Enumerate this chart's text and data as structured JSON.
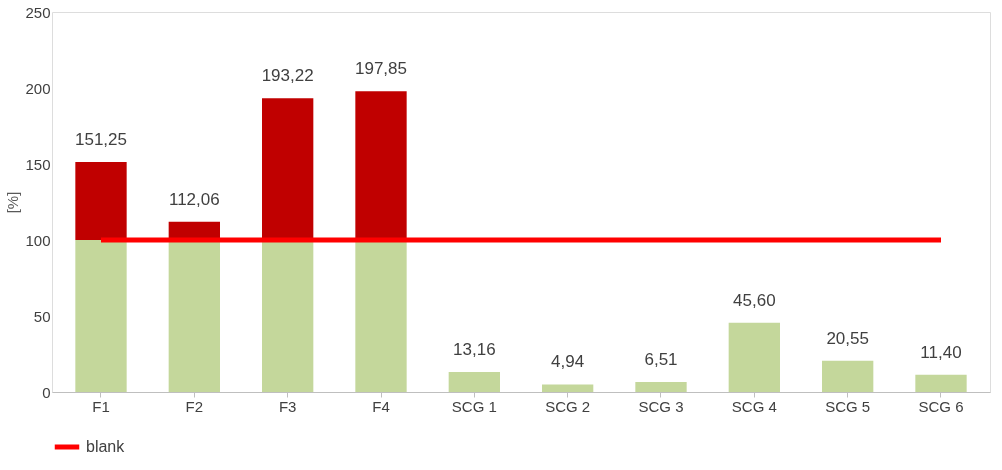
{
  "chart_data": {
    "type": "bar",
    "stacked": true,
    "ylabel": "[%]",
    "categories": [
      "F1",
      "F2",
      "F3",
      "F4",
      "SCG 1",
      "SCG 2",
      "SCG 3",
      "SCG 4",
      "SCG 5",
      "SCG 6"
    ],
    "series": [
      {
        "color": "#c4d79b",
        "values": [
          100,
          100,
          100,
          100,
          13.16,
          4.94,
          6.51,
          45.6,
          20.55,
          11.4
        ]
      },
      {
        "color": "#c00000",
        "values": [
          51.25,
          12.06,
          93.22,
          97.85,
          null,
          null,
          null,
          null,
          null,
          null
        ]
      },
      {
        "type": "line",
        "name": "blank",
        "color": "#ff0000",
        "values": [
          100,
          100,
          100,
          100,
          100,
          100,
          100,
          100,
          100,
          100
        ]
      }
    ],
    "totals": [
      "151,25",
      "112,06",
      "193,22",
      "197,85",
      "13,16",
      "4,94",
      "6,51",
      "45,60",
      "20,55",
      "11,40"
    ],
    "ylim": [
      0,
      250
    ],
    "yticks": [
      0,
      50,
      100,
      150,
      200,
      250
    ],
    "grid": false,
    "legend": "bottom"
  }
}
